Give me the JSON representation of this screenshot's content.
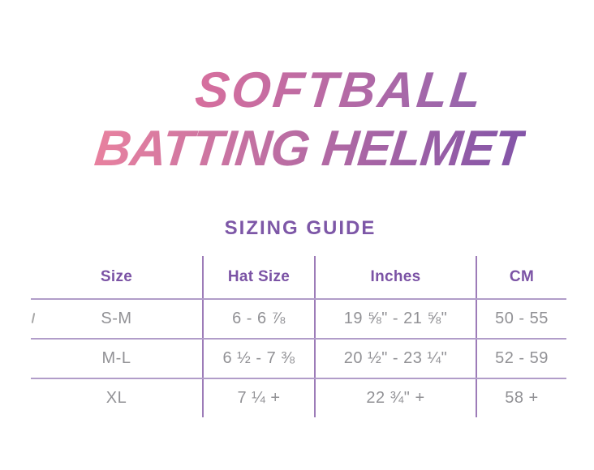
{
  "title": {
    "line1": "SOFTBALL",
    "line2": "BATTING HELMET"
  },
  "subtitle": "SIZING GUIDE",
  "table": {
    "headers": [
      "Size",
      "Hat Size",
      "Inches",
      "CM"
    ],
    "rows": [
      {
        "size": "S-M",
        "hat_size": "6 - 6 ⅞",
        "inches": "19 ⅝\" - 21 ⅝\"",
        "cm": "50 - 55"
      },
      {
        "size": "M-L",
        "hat_size": "6 ½ - 7 ⅜",
        "inches": "20 ½\" - 23 ¼\"",
        "cm": "52 - 59"
      },
      {
        "size": "XL",
        "hat_size": "7 ¼ +",
        "inches": "22 ¾\" +",
        "cm": "58 +"
      }
    ]
  },
  "colors": {
    "background": "#ffffff",
    "title_gradient_line1": [
      "#d76f9d",
      "#9565ad"
    ],
    "title_gradient_line2": [
      "#e8819f",
      "#8355a8"
    ],
    "subtitle": "#7d57a7",
    "table_header_text": "#7b53a5",
    "table_cell_text": "#919195",
    "vertical_line": "#9d7cb8",
    "horizontal_line": "#b19dc9"
  }
}
